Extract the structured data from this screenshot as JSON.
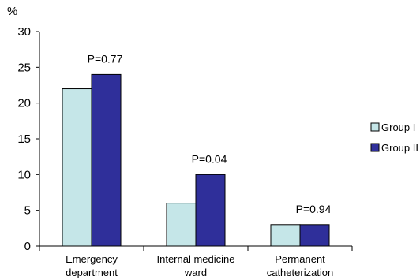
{
  "chart_data": {
    "type": "bar",
    "ylabel": "%",
    "ylim": [
      0,
      30
    ],
    "yticks": [
      0,
      5,
      10,
      15,
      20,
      25,
      30
    ],
    "grid": false,
    "legend_position": "right",
    "categories": [
      [
        "Emergency",
        "department"
      ],
      [
        "Internal medicine",
        "ward"
      ],
      [
        "Permanent",
        "catheterization"
      ]
    ],
    "series": [
      {
        "name": "Group I",
        "values": [
          22,
          6,
          3
        ],
        "color": "#c5e6e8"
      },
      {
        "name": "Group II",
        "values": [
          24,
          10,
          3
        ],
        "color": "#2f2f9a"
      }
    ],
    "annotations": [
      "P=0.77",
      "P=0.04",
      "P=0.94"
    ]
  }
}
